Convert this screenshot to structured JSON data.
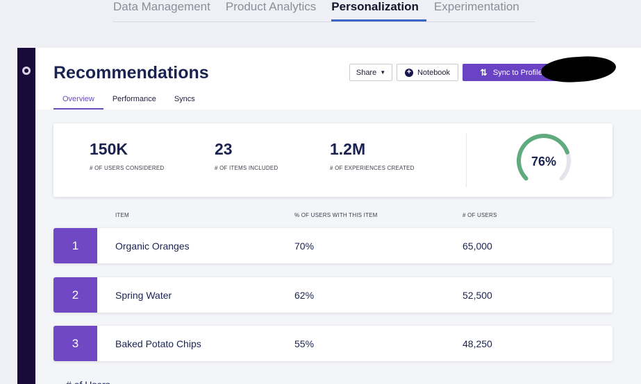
{
  "top_nav": {
    "tabs": [
      {
        "label": "Data Management",
        "active": false
      },
      {
        "label": "Product Analytics",
        "active": false
      },
      {
        "label": "Personalization",
        "active": true
      },
      {
        "label": "Experimentation",
        "active": false
      }
    ]
  },
  "header": {
    "title": "Recommendations",
    "tabs": [
      {
        "label": "Overview",
        "active": true
      },
      {
        "label": "Performance",
        "active": false
      },
      {
        "label": "Syncs",
        "active": false
      }
    ],
    "share_label": "Share",
    "notebook_label": "Notebook",
    "sync_label": "Sync to Profile API"
  },
  "stats": {
    "users": {
      "value": "150K",
      "label": "# OF USERS CONSIDERED"
    },
    "items": {
      "value": "23",
      "label": "# OF ITEMS INCLUDED"
    },
    "experiences": {
      "value": "1.2M",
      "label": "# OF EXPERIENCES CREATED"
    },
    "gauge": {
      "value_text": "76%",
      "fraction": 0.76
    }
  },
  "table": {
    "headers": {
      "item": "ITEM",
      "pct": "% OF USERS WITH THIS ITEM",
      "users": "# OF USERS"
    },
    "rows": [
      {
        "rank": "1",
        "item": "Organic Oranges",
        "pct": "70%",
        "users": "65,000"
      },
      {
        "rank": "2",
        "item": "Spring Water",
        "pct": "62%",
        "users": "52,500"
      },
      {
        "rank": "3",
        "item": "Baked Potato Chips",
        "pct": "55%",
        "users": "48,250"
      }
    ]
  },
  "footer": {
    "partial_text": "# of Users"
  },
  "colors": {
    "accent": "#6a43c4",
    "rail": "#1a0a3a",
    "gauge_fill": "#5fab7e",
    "gauge_track": "#e3e5ea",
    "title": "#1a2250"
  },
  "icons": {
    "rail": "nav-logo-icon",
    "share": "chevron-down-icon",
    "notebook": "plus-circle-icon",
    "sync": "sync-icon"
  }
}
